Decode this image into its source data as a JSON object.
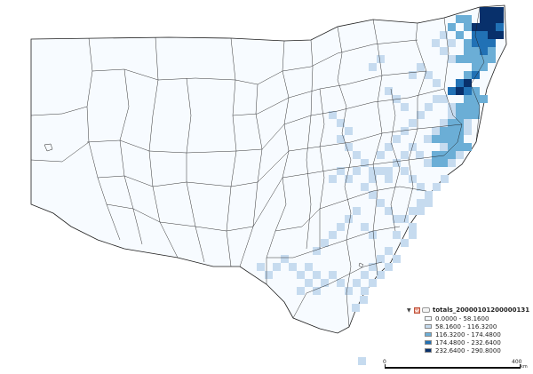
{
  "map": {
    "background": "#ffffff",
    "land_fill": "#f7fbff",
    "boundary_color": "#1e1e1e"
  },
  "legend": {
    "expand_icon": "triangle-down-icon",
    "layer_name": "totals_20000101200000131",
    "classes": [
      {
        "label": "0.0000 - 58.1600",
        "color": "#f7fbff"
      },
      {
        "label": "58.1600 - 116.3200",
        "color": "#c6dbef"
      },
      {
        "label": "116.3200 - 174.4800",
        "color": "#6baed6"
      },
      {
        "label": "174.4800 - 232.6400",
        "color": "#2171b5"
      },
      {
        "label": "232.6400 - 290.8000",
        "color": "#08306b"
      }
    ]
  },
  "scale": {
    "start": "0",
    "end": "400",
    "unit": "km"
  }
}
